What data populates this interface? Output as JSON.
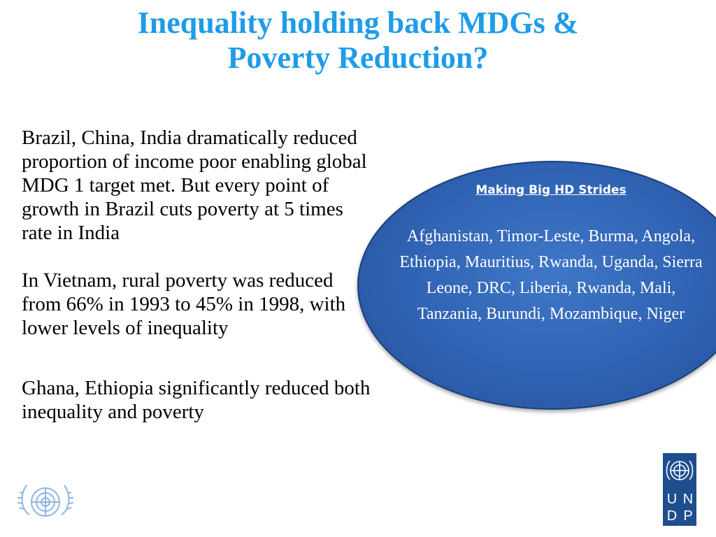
{
  "slide": {
    "title_line1": "Inequality holding back MDGs &",
    "title_line2": "Poverty Reduction?",
    "paragraphs": [
      "Brazil, China, India dramatically reduced proportion of income poor enabling global MDG 1 target met. But every point of growth in Brazil cuts poverty at 5 times rate in India",
      "In Vietnam, rural poverty was reduced from 66% in 1993 to 45% in 1998, with lower levels of inequality",
      "Ghana, Ethiopia significantly reduced both inequality and poverty"
    ],
    "callout": {
      "heading": "Making  Big  HD Strides",
      "countries": "Afghanistan, Timor-Leste, Burma, Angola, Ethiopia, Mauritius, Rwanda, Uganda, Sierra Leone, DRC, Liberia, Rwanda, Mali, Tanzania, Burundi, Mozambique, Niger"
    },
    "undp_letters": [
      "U",
      "N",
      "D",
      "P"
    ]
  },
  "colors": {
    "title": "#1f9ce8",
    "ellipse": "#2f62b2",
    "undp_blue": "#1f4e8f",
    "un_logo": "#8fb6e0"
  },
  "icons": {
    "left_logo": "un-emblem-icon",
    "right_logo": "undp-logo-icon"
  }
}
